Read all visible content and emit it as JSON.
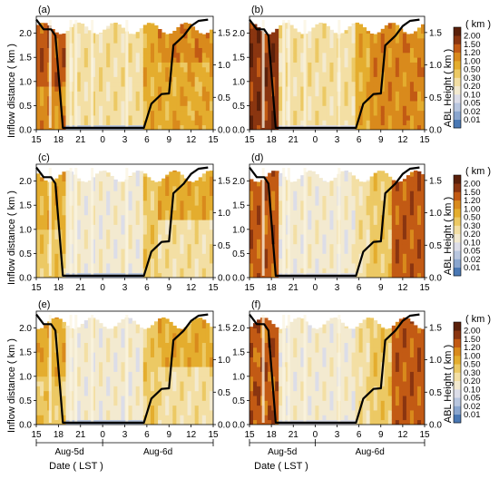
{
  "figure": {
    "ylabel_left": "Inflow distance ( km )",
    "ylabel_right": "ABL Height ( km )",
    "xlabel": "Date ( LST )",
    "day_labels": [
      "Aug-5d",
      "Aug-6d"
    ],
    "colorbar_unit": "( km )",
    "colorbar_ticks": [
      "0.01",
      "0.02",
      "0.05",
      "0.10",
      "0.20",
      "0.30",
      "0.50",
      "1.00",
      "1.20",
      "1.50",
      "2.00"
    ],
    "colorbar_colors": [
      "#4a78b4",
      "#8aa6cf",
      "#b8c6df",
      "#dcdde8",
      "#f3ead0",
      "#f3dfa4",
      "#ecc964",
      "#e4ad2e",
      "#d98a1c",
      "#c25a14",
      "#8a3510",
      "#5a200a"
    ]
  },
  "chart_data": [
    {
      "panel": "(a)",
      "type": "heatmap",
      "x_ticks": [
        "15",
        "18",
        "21",
        "0",
        "3",
        "6",
        "9",
        "12",
        "15"
      ],
      "y_left_ticks": [
        "0.0",
        "0.5",
        "1.0",
        "1.5",
        "2.0"
      ],
      "y_right_ticks": [
        "0.0",
        "0.5",
        "1.0",
        "1.5"
      ],
      "ylim_left": [
        0,
        2.35
      ],
      "ylim_right": [
        0,
        1.75
      ],
      "abl_height_line": {
        "x_hours": [
          15,
          16,
          17,
          17.6,
          18.6,
          24,
          29.6,
          30.6,
          32,
          33,
          33.6,
          35,
          36,
          37,
          38.3
        ],
        "y_km": [
          1.7,
          1.55,
          1.55,
          1.45,
          0.03,
          0.03,
          0.03,
          0.4,
          0.55,
          0.56,
          1.3,
          1.45,
          1.6,
          1.68,
          1.7
        ]
      }
    },
    {
      "panel": "(b)",
      "type": "heatmap",
      "x_ticks": [
        "15",
        "18",
        "21",
        "0",
        "3",
        "6",
        "9",
        "12",
        "15"
      ],
      "y_left_ticks": [
        "0.0",
        "0.5",
        "1.0",
        "1.5",
        "2.0"
      ],
      "y_right_ticks": [
        "0.0",
        "0.5",
        "1.0",
        "1.5"
      ],
      "ylim_left": [
        0,
        2.35
      ],
      "ylim_right": [
        0,
        1.75
      ],
      "abl_height_line": {
        "x_hours": [
          15,
          16,
          17,
          17.6,
          18.6,
          24,
          29.6,
          30.6,
          32,
          33,
          33.6,
          35,
          36,
          37,
          38.3
        ],
        "y_km": [
          1.7,
          1.55,
          1.55,
          1.45,
          0.03,
          0.03,
          0.03,
          0.4,
          0.55,
          0.56,
          1.3,
          1.45,
          1.6,
          1.68,
          1.7
        ]
      }
    },
    {
      "panel": "(c)",
      "type": "heatmap",
      "x_ticks": [
        "15",
        "18",
        "21",
        "0",
        "3",
        "6",
        "9",
        "12",
        "15"
      ],
      "y_left_ticks": [
        "0.0",
        "0.5",
        "1.0",
        "1.5",
        "2.0"
      ],
      "y_right_ticks": [
        "0.0",
        "0.5",
        "1.0",
        "1.5"
      ],
      "ylim_left": [
        0,
        2.35
      ],
      "ylim_right": [
        0,
        1.75
      ],
      "abl_height_line": {
        "x_hours": [
          15,
          16,
          17,
          17.6,
          18.6,
          24,
          29.6,
          30.6,
          32,
          33,
          33.6,
          35,
          36,
          37,
          38.3
        ],
        "y_km": [
          1.7,
          1.55,
          1.55,
          1.45,
          0.03,
          0.03,
          0.03,
          0.4,
          0.55,
          0.56,
          1.3,
          1.45,
          1.6,
          1.68,
          1.7
        ]
      }
    },
    {
      "panel": "(d)",
      "type": "heatmap",
      "x_ticks": [
        "15",
        "18",
        "21",
        "0",
        "3",
        "6",
        "9",
        "12",
        "15"
      ],
      "y_left_ticks": [
        "0.0",
        "0.5",
        "1.0",
        "1.5",
        "2.0"
      ],
      "y_right_ticks": [
        "0.0",
        "0.5",
        "1.0",
        "1.5"
      ],
      "ylim_left": [
        0,
        2.35
      ],
      "ylim_right": [
        0,
        1.75
      ],
      "abl_height_line": {
        "x_hours": [
          15,
          16,
          17,
          17.6,
          18.6,
          24,
          29.6,
          30.6,
          32,
          33,
          33.6,
          35,
          36,
          37,
          38.3
        ],
        "y_km": [
          1.7,
          1.55,
          1.55,
          1.45,
          0.03,
          0.03,
          0.03,
          0.4,
          0.55,
          0.56,
          1.3,
          1.45,
          1.6,
          1.68,
          1.7
        ]
      }
    },
    {
      "panel": "(e)",
      "type": "heatmap",
      "x_ticks": [
        "15",
        "18",
        "21",
        "0",
        "3",
        "6",
        "9",
        "12",
        "15"
      ],
      "y_left_ticks": [
        "0.0",
        "0.5",
        "1.0",
        "1.5",
        "2.0"
      ],
      "y_right_ticks": [
        "0.0",
        "0.5",
        "1.0",
        "1.5"
      ],
      "ylim_left": [
        0,
        2.35
      ],
      "ylim_right": [
        0,
        1.75
      ],
      "abl_height_line": {
        "x_hours": [
          15,
          16,
          17,
          17.6,
          18.6,
          24,
          29.6,
          30.6,
          32,
          33,
          33.6,
          35,
          36,
          37,
          38.3
        ],
        "y_km": [
          1.7,
          1.55,
          1.55,
          1.45,
          0.03,
          0.03,
          0.03,
          0.4,
          0.55,
          0.56,
          1.3,
          1.45,
          1.6,
          1.68,
          1.7
        ]
      }
    },
    {
      "panel": "(f)",
      "type": "heatmap",
      "x_ticks": [
        "15",
        "18",
        "21",
        "0",
        "3",
        "6",
        "9",
        "12",
        "15"
      ],
      "y_left_ticks": [
        "0.0",
        "0.5",
        "1.0",
        "1.5",
        "2.0"
      ],
      "y_right_ticks": [
        "0.0",
        "0.5",
        "1.0",
        "1.5"
      ],
      "ylim_left": [
        0,
        2.35
      ],
      "ylim_right": [
        0,
        1.75
      ],
      "abl_height_line": {
        "x_hours": [
          15,
          16,
          17,
          17.6,
          18.6,
          24,
          29.6,
          30.6,
          32,
          33,
          33.6,
          35,
          36,
          37,
          38.3
        ],
        "y_km": [
          1.7,
          1.55,
          1.55,
          1.45,
          0.03,
          0.03,
          0.03,
          0.4,
          0.55,
          0.56,
          1.3,
          1.45,
          1.6,
          1.68,
          1.7
        ]
      }
    }
  ]
}
